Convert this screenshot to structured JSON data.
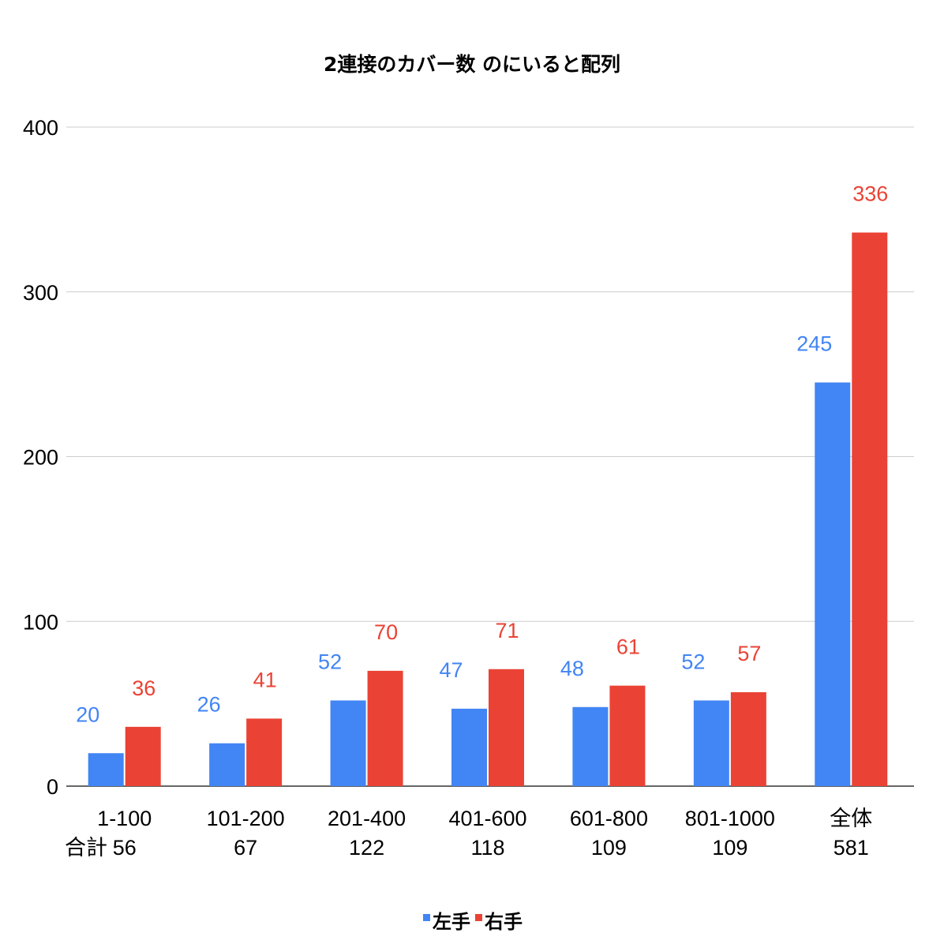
{
  "chart_data": {
    "type": "bar",
    "title": "2連接のカバー数 のにいると配列",
    "xlabel": "",
    "ylabel": "",
    "ylim": [
      0,
      400
    ],
    "yticks": [
      0,
      100,
      200,
      300,
      400
    ],
    "grid": true,
    "legend_position": "bottom",
    "categories": [
      "1-100",
      "101-200",
      "201-400",
      "401-600",
      "601-800",
      "801-1000",
      "全体"
    ],
    "totals_label": "合計",
    "totals": [
      "56",
      "67",
      "122",
      "118",
      "109",
      "109",
      "581"
    ],
    "series": [
      {
        "name": "左手",
        "color": "#4285f4",
        "values": [
          20,
          26,
          52,
          47,
          48,
          52,
          245
        ]
      },
      {
        "name": "右手",
        "color": "#ea4335",
        "values": [
          36,
          41,
          70,
          71,
          61,
          57,
          336
        ]
      }
    ]
  }
}
